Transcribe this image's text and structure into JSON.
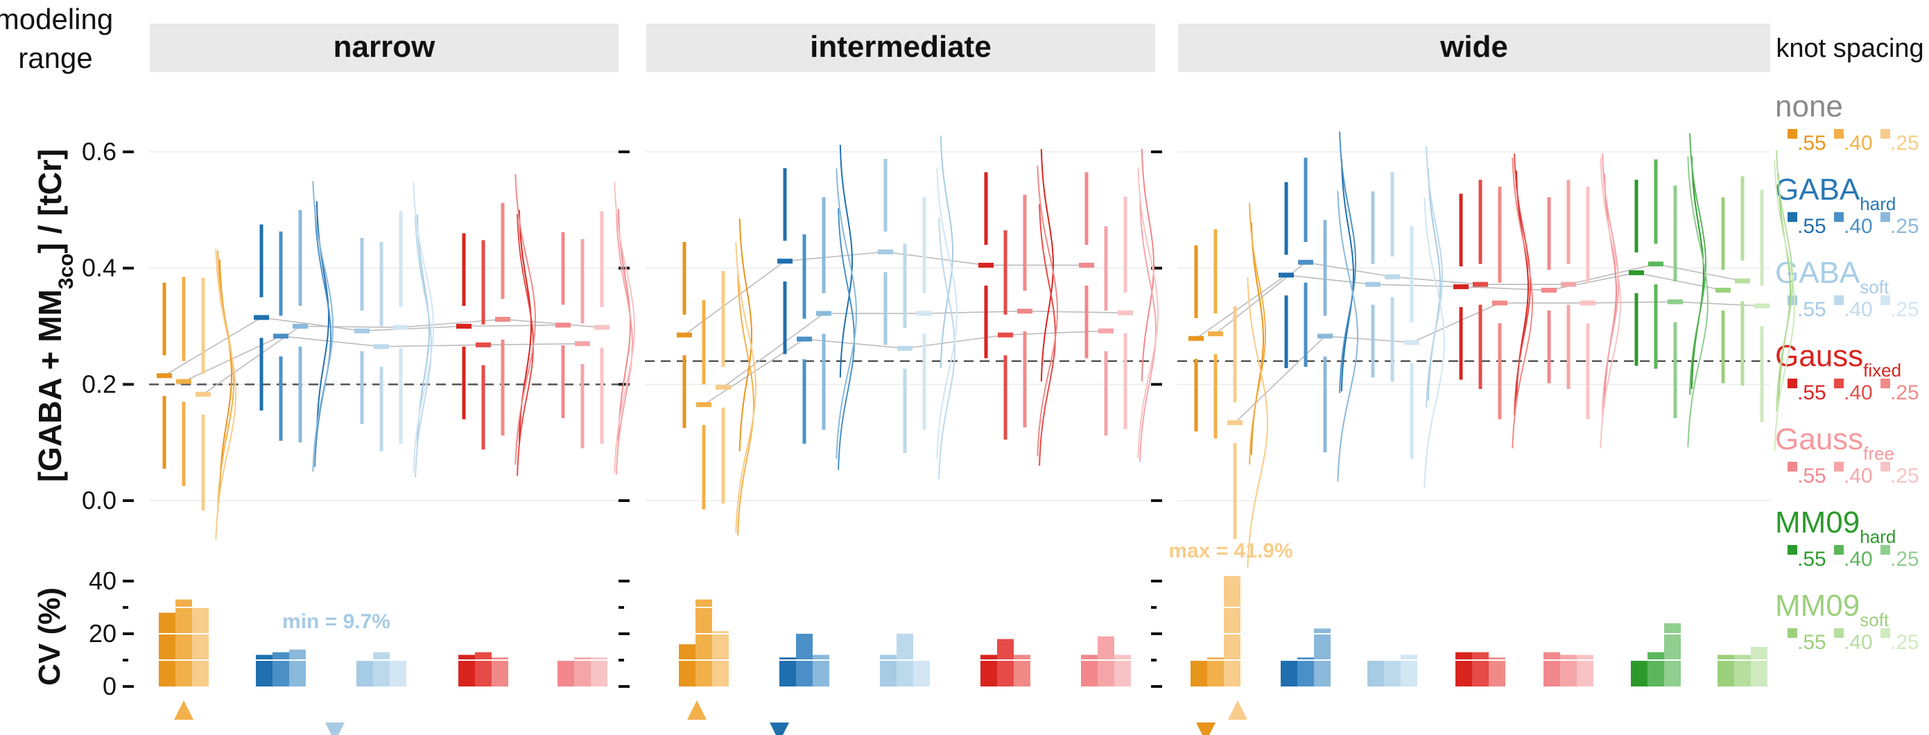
{
  "header": {
    "modeling_range_line1": "modeling",
    "modeling_range_line2": "range",
    "panels": [
      "narrow",
      "intermediate",
      "wide"
    ]
  },
  "legend": {
    "title": "knot spacing",
    "groups": [
      {
        "main": "none",
        "sub": "",
        "color": "#8a8a8a",
        "colors": [
          "#e8951c",
          "#f2b04a",
          "#f8cc8a"
        ]
      },
      {
        "main": "GABA",
        "sub": "hard",
        "color": "#2878b5",
        "colors": [
          "#1f6fae",
          "#4a90c6",
          "#8ab9dc"
        ]
      },
      {
        "main": "GABA",
        "sub": "soft",
        "color": "#a8cde6",
        "colors": [
          "#a6cbe4",
          "#bcd9ec",
          "#d2e6f3"
        ]
      },
      {
        "main": "Gauss",
        "sub": "fixed",
        "color": "#d9231f",
        "colors": [
          "#d9231f",
          "#e64b47",
          "#f08a87"
        ]
      },
      {
        "main": "Gauss",
        "sub": "free",
        "color": "#f39a9d",
        "colors": [
          "#f2888c",
          "#f5a5a8",
          "#f8c3c5"
        ]
      },
      {
        "main": "MM09",
        "sub": "hard",
        "color": "#2b9a2b",
        "colors": [
          "#2b9a2b",
          "#5cb65c",
          "#8fce8f"
        ]
      },
      {
        "main": "MM09",
        "sub": "soft",
        "color": "#9bd07c",
        "colors": [
          "#9bd07c",
          "#b6de9e",
          "#cfeabe"
        ]
      }
    ],
    "spacings": [
      ".55",
      ".40",
      ".25"
    ]
  },
  "chart_data": [
    {
      "type": "interval",
      "ylabel_main": "[GABA + MM",
      "ylabel_sub": "3co",
      "ylabel_end": "] / [tCr]",
      "ylim": [
        0,
        0.6
      ],
      "yticks": [
        "0.0",
        "0.2",
        "0.4",
        "0.6"
      ],
      "panels": [
        {
          "name": "narrow",
          "reference": 0.2,
          "medians": [
            [
              0.215,
              0.205,
              0.183
            ],
            [
              0.315,
              0.283,
              0.3
            ],
            [
              0.292,
              0.265,
              0.298
            ],
            [
              0.3,
              0.268,
              0.312
            ],
            [
              0.302,
              0.27,
              0.298
            ]
          ]
        },
        {
          "name": "intermediate",
          "reference": 0.24,
          "medians": [
            [
              0.285,
              0.165,
              0.195
            ],
            [
              0.412,
              0.278,
              0.322
            ],
            [
              0.428,
              0.262,
              0.322
            ],
            [
              0.405,
              0.285,
              0.326
            ],
            [
              0.405,
              0.292,
              0.323
            ]
          ]
        },
        {
          "name": "wide",
          "reference": 0.24,
          "medians": [
            [
              0.279,
              0.287,
              0.134
            ],
            [
              0.388,
              0.41,
              0.283
            ],
            [
              0.372,
              0.385,
              0.272
            ],
            [
              0.368,
              0.372,
              0.34
            ],
            [
              0.362,
              0.372,
              0.34
            ],
            [
              0.392,
              0.407,
              0.342
            ],
            [
              0.362,
              0.378,
              0.335
            ]
          ]
        }
      ]
    },
    {
      "type": "bar",
      "ylabel": "CV (%)",
      "ylim": [
        0,
        40
      ],
      "yticks": [
        "0",
        "20",
        "40"
      ],
      "panels": [
        {
          "name": "narrow",
          "values": [
            [
              28,
              33,
              30
            ],
            [
              12,
              13,
              14
            ],
            [
              9.7,
              13,
              10
            ],
            [
              12,
              13,
              11
            ],
            [
              10,
              11,
              11
            ]
          ],
          "annotation": "min = 9.7%"
        },
        {
          "name": "intermediate",
          "values": [
            [
              16,
              33,
              21
            ],
            [
              11,
              20,
              12
            ],
            [
              12,
              20,
              10
            ],
            [
              12,
              18,
              12
            ],
            [
              12,
              19,
              12
            ]
          ]
        },
        {
          "name": "wide",
          "values": [
            [
              10,
              11,
              41.9
            ],
            [
              10,
              11,
              22
            ],
            [
              10,
              10,
              12
            ],
            [
              13,
              13,
              11
            ],
            [
              13,
              12,
              12
            ],
            [
              10,
              13,
              24
            ],
            [
              12,
              12,
              15
            ]
          ],
          "annotation": "max = 41.9%"
        }
      ]
    }
  ]
}
